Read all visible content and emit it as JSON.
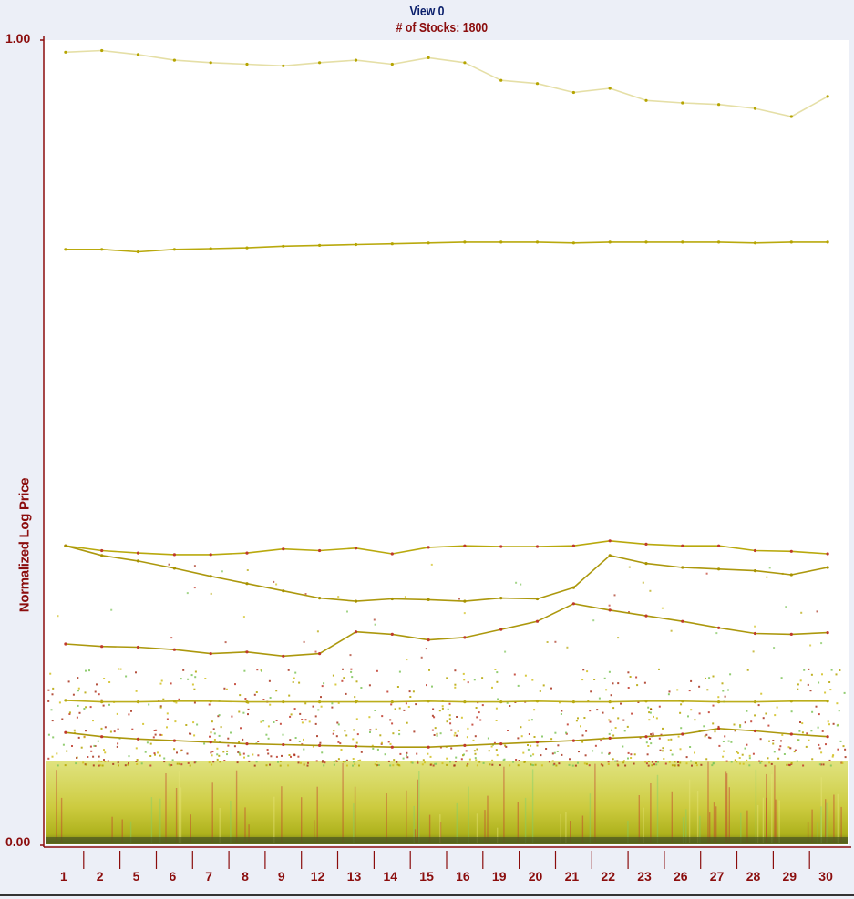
{
  "chart_data": {
    "type": "scatter",
    "title": "View 0",
    "subtitle": "# of Stocks: 1800",
    "ylabel": "Normalized Log Price",
    "xlabel": "",
    "ylim": [
      0.0,
      1.0
    ],
    "y_ticks": [
      "1.00",
      "0.00"
    ],
    "categories": [
      "1",
      "2",
      "5",
      "6",
      "7",
      "8",
      "9",
      "12",
      "13",
      "14",
      "15",
      "16",
      "19",
      "20",
      "21",
      "22",
      "23",
      "26",
      "27",
      "28",
      "29",
      "30"
    ],
    "grid": false,
    "series": [
      {
        "color": "#b5a400",
        "values": [
          0.74,
          0.74,
          0.737,
          0.74,
          0.741,
          0.742,
          0.744,
          0.745,
          0.746,
          0.747,
          0.748,
          0.749,
          0.749,
          0.749,
          0.748,
          0.749,
          0.749,
          0.749,
          0.749,
          0.748,
          0.749,
          0.749
        ]
      },
      {
        "color": "#b5a400",
        "values": [
          0.372,
          0.366,
          0.363,
          0.361,
          0.361,
          0.363,
          0.368,
          0.366,
          0.369,
          0.362,
          0.37,
          0.372,
          0.371,
          0.371,
          0.372,
          0.378,
          0.374,
          0.372,
          0.372,
          0.366,
          0.365,
          0.362
        ]
      },
      {
        "color": "#a89200",
        "values": [
          0.372,
          0.36,
          0.353,
          0.344,
          0.334,
          0.325,
          0.316,
          0.307,
          0.303,
          0.306,
          0.305,
          0.303,
          0.307,
          0.306,
          0.32,
          0.36,
          0.35,
          0.345,
          0.343,
          0.341,
          0.336,
          0.345
        ]
      },
      {
        "color": "#a89200",
        "values": [
          0.25,
          0.247,
          0.246,
          0.243,
          0.238,
          0.24,
          0.235,
          0.238,
          0.265,
          0.262,
          0.255,
          0.258,
          0.268,
          0.278,
          0.3,
          0.292,
          0.285,
          0.278,
          0.27,
          0.263,
          0.262,
          0.264
        ]
      },
      {
        "color": "#b8aa10",
        "values": [
          0.18,
          0.178,
          0.178,
          0.179,
          0.179,
          0.178,
          0.178,
          0.178,
          0.178,
          0.178,
          0.179,
          0.178,
          0.178,
          0.179,
          0.178,
          0.178,
          0.179,
          0.179,
          0.178,
          0.178,
          0.179,
          0.179
        ]
      },
      {
        "color": "#a89200",
        "values": [
          0.14,
          0.135,
          0.132,
          0.13,
          0.128,
          0.126,
          0.125,
          0.124,
          0.123,
          0.122,
          0.122,
          0.124,
          0.126,
          0.128,
          0.13,
          0.133,
          0.135,
          0.138,
          0.145,
          0.142,
          0.138,
          0.135
        ]
      },
      {
        "color": "#b5a400",
        "values": [
          0.985,
          0.987,
          0.982,
          0.975,
          0.972,
          0.97,
          0.968,
          0.972,
          0.975,
          0.97,
          0.978,
          0.972,
          0.95,
          0.946,
          0.935,
          0.94,
          0.925,
          0.922,
          0.92,
          0.915,
          0.905,
          0.93
        ]
      }
    ]
  }
}
